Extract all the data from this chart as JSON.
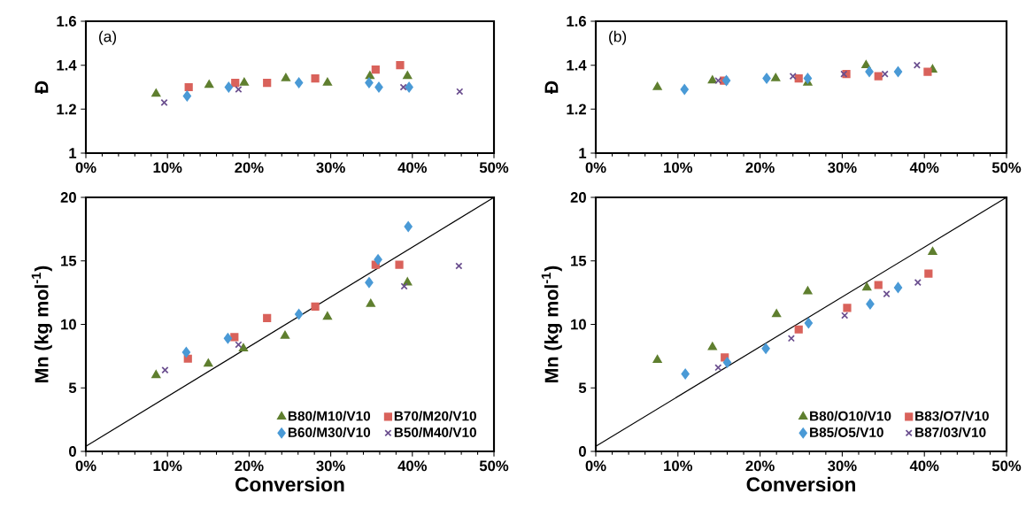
{
  "chart_data": [
    {
      "type": "scatter",
      "ylabel": "Đ",
      "annotations": [
        "(a)"
      ],
      "xlim": [
        0,
        50
      ],
      "ylim": [
        1,
        1.6
      ],
      "xticks": [
        {
          "value": 0,
          "label": "0%"
        },
        {
          "value": 10,
          "label": "10%"
        },
        {
          "value": 20,
          "label": "20%"
        },
        {
          "value": 30,
          "label": "30%"
        },
        {
          "value": 40,
          "label": "40%"
        },
        {
          "value": 50,
          "label": "50%"
        }
      ],
      "yticks": [
        1,
        1.2,
        1.4,
        1.6
      ],
      "grid": false,
      "legend": false,
      "series": [
        {
          "color": "#5f7f2f",
          "marker": "triangle",
          "x": [
            8.6,
            15.1,
            19.4,
            24.5,
            29.6,
            34.8,
            39.4
          ],
          "values": [
            1.27,
            1.31,
            1.32,
            1.34,
            1.32,
            1.35,
            1.35
          ]
        },
        {
          "color": "#d9625b",
          "marker": "square",
          "x": [
            12.6,
            18.3,
            22.2,
            28.1,
            35.5,
            38.5
          ],
          "values": [
            1.3,
            1.32,
            1.32,
            1.34,
            1.38,
            1.4
          ]
        },
        {
          "color": "#4a9ad6",
          "marker": "diamond",
          "x": [
            12.4,
            17.5,
            26.1,
            34.7,
            35.9,
            39.6
          ],
          "values": [
            1.26,
            1.3,
            1.32,
            1.32,
            1.3,
            1.3
          ]
        },
        {
          "color": "#6b4f8f",
          "marker": "cross",
          "x": [
            9.6,
            18.7,
            38.9,
            45.8
          ],
          "values": [
            1.23,
            1.29,
            1.3,
            1.28
          ]
        }
      ]
    },
    {
      "type": "scatter",
      "ylabel": "Đ",
      "annotations": [
        "(b)"
      ],
      "xlim": [
        0,
        50
      ],
      "ylim": [
        1,
        1.6
      ],
      "xticks": [
        {
          "value": 0,
          "label": "0%"
        },
        {
          "value": 10,
          "label": "10%"
        },
        {
          "value": 20,
          "label": "20%"
        },
        {
          "value": 30,
          "label": "30%"
        },
        {
          "value": 40,
          "label": "40%"
        },
        {
          "value": 50,
          "label": "50%"
        }
      ],
      "yticks": [
        1,
        1.2,
        1.4,
        1.6
      ],
      "grid": false,
      "legend": false,
      "series": [
        {
          "color": "#5f7f2f",
          "marker": "triangle",
          "x": [
            7.5,
            14.2,
            21.9,
            25.8,
            32.9,
            41.0
          ],
          "values": [
            1.3,
            1.33,
            1.34,
            1.32,
            1.4,
            1.38
          ]
        },
        {
          "color": "#d9625b",
          "marker": "square",
          "x": [
            15.6,
            24.7,
            30.5,
            34.4,
            40.4
          ],
          "values": [
            1.33,
            1.34,
            1.36,
            1.35,
            1.37
          ]
        },
        {
          "color": "#4a9ad6",
          "marker": "diamond",
          "x": [
            10.8,
            15.9,
            20.8,
            25.8,
            33.3,
            36.8
          ],
          "values": [
            1.29,
            1.33,
            1.34,
            1.34,
            1.37,
            1.37
          ]
        },
        {
          "color": "#6b4f8f",
          "marker": "cross",
          "x": [
            14.9,
            24.0,
            30.2,
            35.2,
            39.1
          ],
          "values": [
            1.33,
            1.35,
            1.36,
            1.36,
            1.4
          ]
        }
      ]
    },
    {
      "type": "scatter",
      "xlabel": "Conversion",
      "ylabel": "Mn (kg mol$^{-1}$)",
      "xlim": [
        0,
        50
      ],
      "ylim": [
        0,
        20
      ],
      "xticks": [
        {
          "value": 0,
          "label": "0%"
        },
        {
          "value": 10,
          "label": "10%"
        },
        {
          "value": 20,
          "label": "20%"
        },
        {
          "value": 30,
          "label": "30%"
        },
        {
          "value": 40,
          "label": "40%"
        },
        {
          "value": 50,
          "label": "50%"
        }
      ],
      "yticks": [
        0,
        5,
        10,
        15,
        20
      ],
      "grid": false,
      "legend": "bottom right",
      "series": [
        {
          "name": "B80/M10/V10",
          "color": "#5f7f2f",
          "marker": "triangle",
          "x": [
            8.6,
            15.0,
            19.3,
            24.4,
            29.6,
            34.9,
            39.4
          ],
          "values": [
            6.0,
            6.9,
            8.1,
            9.1,
            10.6,
            11.6,
            13.3
          ]
        },
        {
          "name": "B70/M20/V10",
          "color": "#d9625b",
          "marker": "square",
          "x": [
            12.5,
            18.2,
            22.2,
            28.1,
            35.5,
            38.4
          ],
          "values": [
            7.3,
            9.0,
            10.5,
            11.4,
            14.7,
            14.7
          ]
        },
        {
          "name": "B60/M30/V10",
          "color": "#4a9ad6",
          "marker": "diamond",
          "x": [
            12.3,
            17.4,
            26.1,
            34.7,
            35.8,
            39.5
          ],
          "values": [
            7.8,
            8.9,
            10.8,
            13.3,
            15.1,
            17.7
          ]
        },
        {
          "name": "B50/M40/V10",
          "color": "#6b4f8f",
          "marker": "cross",
          "x": [
            9.7,
            18.7,
            39.0,
            45.7
          ],
          "values": [
            6.4,
            8.4,
            13.0,
            14.6
          ]
        },
        {
          "type": "line",
          "color": "#000000",
          "marker": "none",
          "x": [
            0,
            50
          ],
          "values": [
            0.4,
            20
          ]
        }
      ]
    },
    {
      "type": "scatter",
      "xlabel": "Conversion",
      "ylabel": "Mn (kg mol$^{-1}$)",
      "xlim": [
        0,
        50
      ],
      "ylim": [
        0,
        20
      ],
      "xticks": [
        {
          "value": 0,
          "label": "0%"
        },
        {
          "value": 10,
          "label": "10%"
        },
        {
          "value": 20,
          "label": "20%"
        },
        {
          "value": 30,
          "label": "30%"
        },
        {
          "value": 40,
          "label": "40%"
        },
        {
          "value": 50,
          "label": "50%"
        }
      ],
      "yticks": [
        0,
        5,
        10,
        15,
        20
      ],
      "grid": false,
      "legend": "bottom right",
      "series": [
        {
          "name": "B80/O10/V10",
          "color": "#5f7f2f",
          "marker": "triangle",
          "x": [
            7.5,
            14.2,
            22.0,
            25.8,
            33.0,
            41.0
          ],
          "values": [
            7.2,
            8.2,
            10.8,
            12.6,
            12.9,
            15.7
          ]
        },
        {
          "name": "B83/O7/V10",
          "color": "#d9625b",
          "marker": "square",
          "x": [
            15.7,
            24.7,
            30.6,
            34.4,
            40.5
          ],
          "values": [
            7.4,
            9.6,
            11.3,
            13.1,
            14.0
          ]
        },
        {
          "name": "B85/O5/V10",
          "color": "#4a9ad6",
          "marker": "diamond",
          "x": [
            10.9,
            16.0,
            20.7,
            25.9,
            33.4,
            36.8
          ],
          "values": [
            6.1,
            7.0,
            8.1,
            10.1,
            11.6,
            12.9
          ]
        },
        {
          "name": "B87/03/V10",
          "color": "#6b4f8f",
          "marker": "cross",
          "x": [
            14.9,
            23.8,
            30.3,
            35.4,
            39.2
          ],
          "values": [
            6.6,
            8.9,
            10.7,
            12.4,
            13.3
          ]
        },
        {
          "type": "line",
          "color": "#000000",
          "marker": "none",
          "x": [
            0,
            50
          ],
          "values": [
            0.4,
            20
          ]
        }
      ]
    }
  ]
}
